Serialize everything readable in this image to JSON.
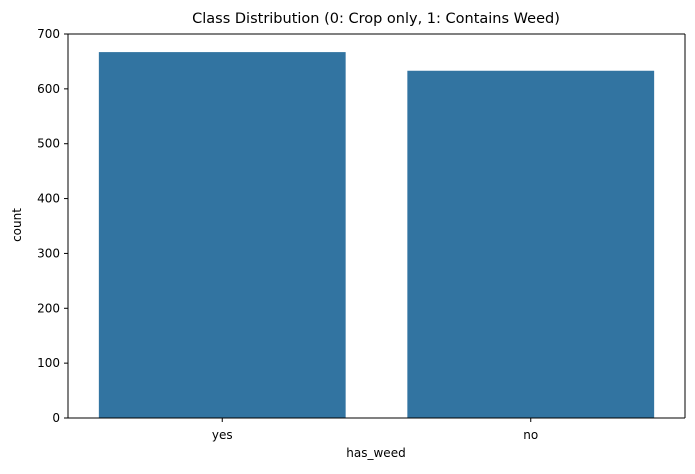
{
  "chart_data": {
    "type": "bar",
    "title": "Class Distribution (0: Crop only, 1: Contains Weed)",
    "xlabel": "has_weed",
    "ylabel": "count",
    "categories": [
      "yes",
      "no"
    ],
    "values": [
      667,
      633
    ],
    "ylim": [
      0,
      700
    ],
    "yticks": [
      "0",
      "100",
      "200",
      "300",
      "400",
      "500",
      "600",
      "700"
    ],
    "grid": false,
    "bar_color": "#3274a1"
  }
}
